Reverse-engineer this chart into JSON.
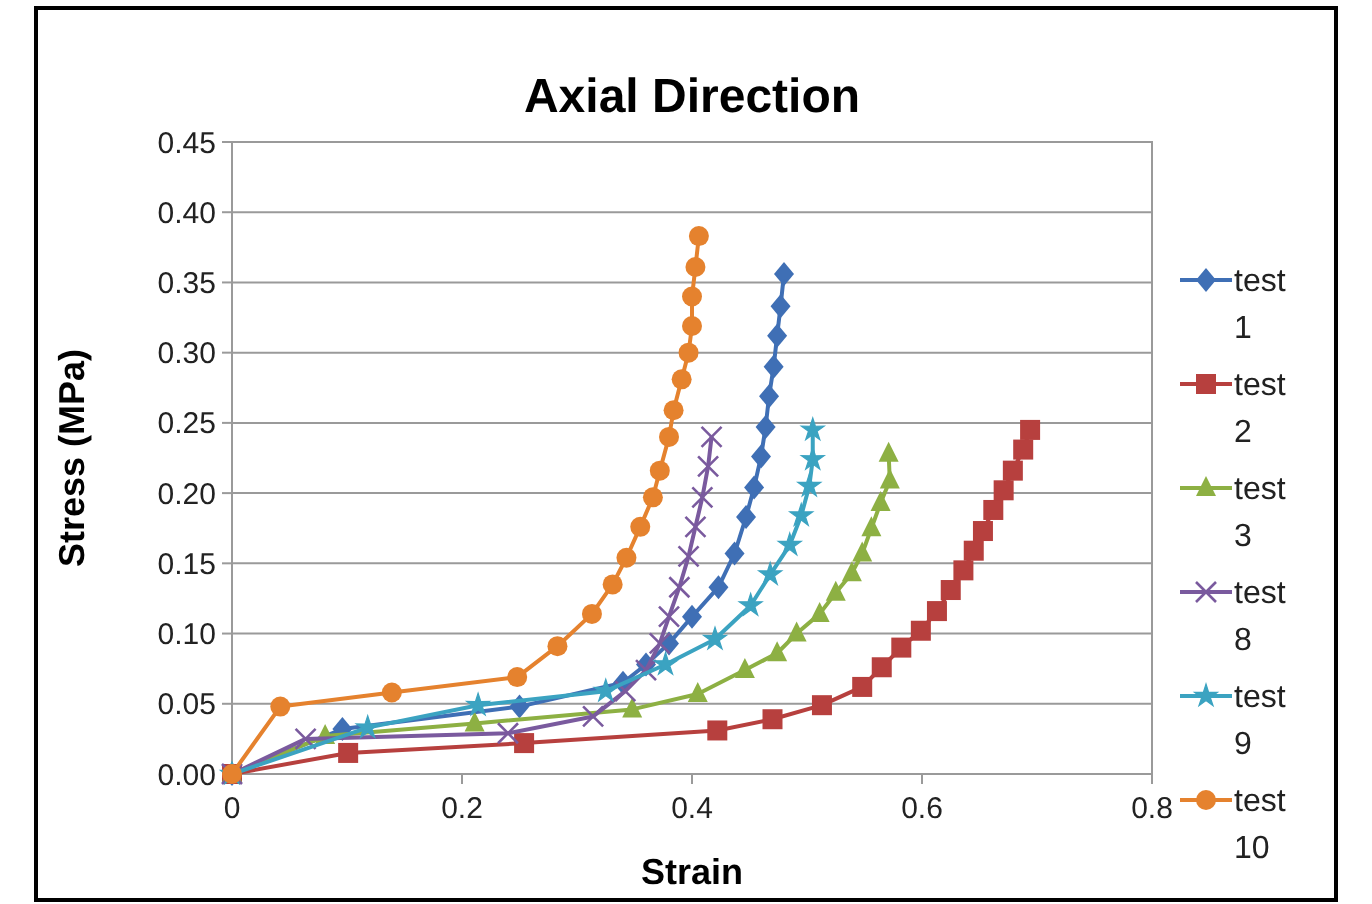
{
  "chart_data": {
    "type": "line",
    "title": "Axial Direction",
    "xlabel": "Strain",
    "ylabel": "Stress (MPa)",
    "xlim": [
      0,
      0.8
    ],
    "xticks": [
      0,
      0.2,
      0.4,
      0.6,
      0.8
    ],
    "ylim": [
      0,
      0.45
    ],
    "yticks": [
      {
        "value": 0,
        "label": "0.00"
      },
      {
        "value": 0.05,
        "label": "0.05"
      },
      {
        "value": 0.1,
        "label": "0.10"
      },
      {
        "value": 0.15,
        "label": "0.15"
      },
      {
        "value": 0.2,
        "label": "0.20"
      },
      {
        "value": 0.25,
        "label": "0.25"
      },
      {
        "value": 0.3,
        "label": "0.30"
      },
      {
        "value": 0.35,
        "label": "0.35"
      },
      {
        "value": 0.4,
        "label": "0.40"
      },
      {
        "value": 0.45,
        "label": "0.45"
      }
    ],
    "grid": "y",
    "legend": "right",
    "series": [
      {
        "name": "test 1",
        "color": "#3f6fb5",
        "marker": "diamond",
        "x": [
          0,
          0.096,
          0.25,
          0.34,
          0.36,
          0.38,
          0.4,
          0.423,
          0.437,
          0.447,
          0.454,
          0.46,
          0.464,
          0.467,
          0.471,
          0.474,
          0.477,
          0.48
        ],
        "values": [
          0,
          0.032,
          0.048,
          0.065,
          0.078,
          0.093,
          0.112,
          0.133,
          0.157,
          0.183,
          0.204,
          0.226,
          0.247,
          0.269,
          0.29,
          0.312,
          0.333,
          0.356
        ]
      },
      {
        "name": "test 2",
        "color": "#b7403e",
        "marker": "square",
        "x": [
          0,
          0.101,
          0.254,
          0.422,
          0.47,
          0.513,
          0.548,
          0.565,
          0.582,
          0.599,
          0.613,
          0.625,
          0.636,
          0.645,
          0.653,
          0.662,
          0.671,
          0.679,
          0.688,
          0.694
        ],
        "values": [
          0,
          0.015,
          0.022,
          0.031,
          0.039,
          0.049,
          0.062,
          0.076,
          0.09,
          0.102,
          0.116,
          0.131,
          0.145,
          0.159,
          0.173,
          0.188,
          0.202,
          0.216,
          0.231,
          0.245
        ]
      },
      {
        "name": "test 3",
        "color": "#8db043",
        "marker": "triangle",
        "x": [
          0,
          0.081,
          0.211,
          0.348,
          0.405,
          0.446,
          0.474,
          0.491,
          0.511,
          0.525,
          0.539,
          0.548,
          0.556,
          0.564,
          0.572,
          0.571
        ],
        "values": [
          0,
          0.027,
          0.036,
          0.046,
          0.057,
          0.074,
          0.086,
          0.1,
          0.114,
          0.129,
          0.143,
          0.157,
          0.175,
          0.193,
          0.209,
          0.228
        ]
      },
      {
        "name": "test 8",
        "color": "#7a5a9e",
        "marker": "cross",
        "x": [
          0,
          0.064,
          0.24,
          0.314,
          0.342,
          0.36,
          0.372,
          0.38,
          0.389,
          0.397,
          0.403,
          0.409,
          0.414,
          0.417
        ],
        "values": [
          0,
          0.025,
          0.029,
          0.041,
          0.059,
          0.074,
          0.093,
          0.112,
          0.133,
          0.155,
          0.176,
          0.197,
          0.219,
          0.24
        ]
      },
      {
        "name": "test 9",
        "color": "#3ba3c1",
        "marker": "star",
        "x": [
          0,
          0.118,
          0.214,
          0.325,
          0.377,
          0.42,
          0.451,
          0.468,
          0.485,
          0.495,
          0.502,
          0.505,
          0.505
        ],
        "values": [
          0,
          0.033,
          0.049,
          0.059,
          0.078,
          0.096,
          0.12,
          0.142,
          0.163,
          0.184,
          0.205,
          0.224,
          0.245
        ]
      },
      {
        "name": "test 10",
        "color": "#e5822e",
        "marker": "circle",
        "x": [
          0,
          0.042,
          0.139,
          0.248,
          0.283,
          0.313,
          0.331,
          0.343,
          0.355,
          0.366,
          0.372,
          0.38,
          0.384,
          0.391,
          0.397,
          0.4,
          0.4,
          0.403,
          0.406
        ],
        "values": [
          0,
          0.048,
          0.058,
          0.069,
          0.091,
          0.114,
          0.135,
          0.154,
          0.176,
          0.197,
          0.216,
          0.24,
          0.259,
          0.281,
          0.3,
          0.319,
          0.34,
          0.361,
          0.383
        ]
      }
    ]
  }
}
